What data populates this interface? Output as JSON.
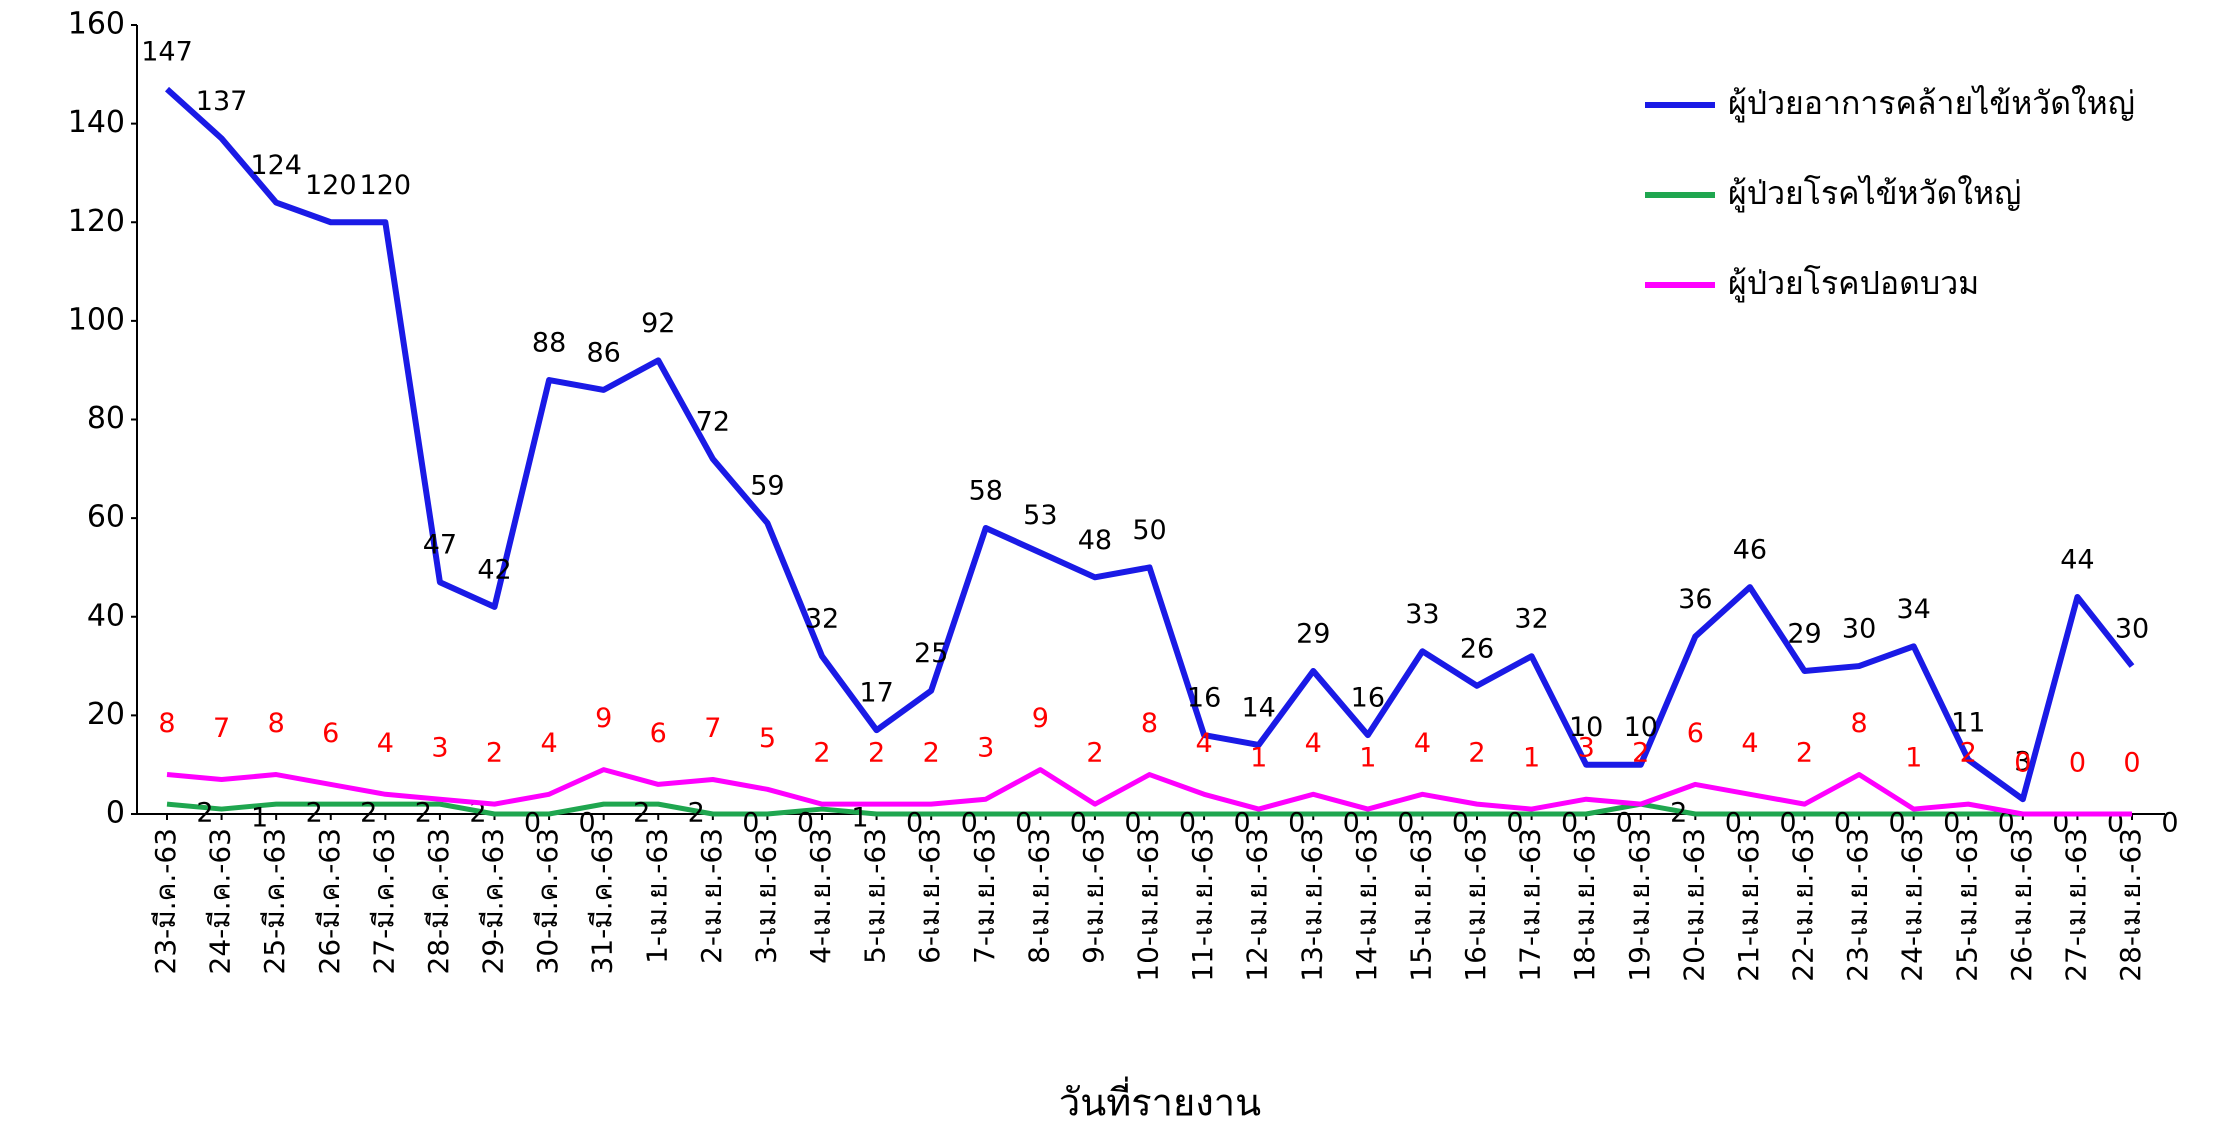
{
  "chart_data": {
    "type": "line",
    "xlabel": "วันที่รายงาน",
    "categories": [
      "23-มี.ค.-63",
      "24-มี.ค.-63",
      "25-มี.ค.-63",
      "26-มี.ค.-63",
      "27-มี.ค.-63",
      "28-มี.ค.-63",
      "29-มี.ค.-63",
      "30-มี.ค.-63",
      "31-มี.ค.-63",
      "1-เม.ย.-63",
      "2-เม.ย.-63",
      "3-เม.ย.-63",
      "4-เม.ย.-63",
      "5-เม.ย.-63",
      "6-เม.ย.-63",
      "7-เม.ย.-63",
      "8-เม.ย.-63",
      "9-เม.ย.-63",
      "10-เม.ย.-63",
      "11-เม.ย.-63",
      "12-เม.ย.-63",
      "13-เม.ย.-63",
      "14-เม.ย.-63",
      "15-เม.ย.-63",
      "16-เม.ย.-63",
      "17-เม.ย.-63",
      "18-เม.ย.-63",
      "19-เม.ย.-63",
      "20-เม.ย.-63",
      "21-เม.ย.-63",
      "22-เม.ย.-63",
      "23-เม.ย.-63",
      "24-เม.ย.-63",
      "25-เม.ย.-63",
      "26-เม.ย.-63",
      "27-เม.ย.-63",
      "28-เม.ย.-63"
    ],
    "series": [
      {
        "name": "ผู้ป่วยอาการคล้ายไข้หวัดใหญ่",
        "color": "#1a1ae6",
        "label_color": "#000000",
        "values": [
          147,
          137,
          124,
          120,
          120,
          47,
          42,
          88,
          86,
          92,
          72,
          59,
          32,
          17,
          25,
          58,
          53,
          48,
          50,
          16,
          14,
          29,
          16,
          33,
          26,
          32,
          10,
          10,
          36,
          46,
          29,
          30,
          34,
          11,
          3,
          44,
          30
        ]
      },
      {
        "name": "ผู้ป่วยโรคไข้หวัดใหญ่",
        "color": "#1fa64f",
        "label_color": "#000000",
        "values": [
          2,
          1,
          2,
          2,
          2,
          2,
          0,
          0,
          2,
          2,
          0,
          0,
          1,
          0,
          0,
          0,
          0,
          0,
          0,
          0,
          0,
          0,
          0,
          0,
          0,
          0,
          0,
          2,
          0,
          0,
          0,
          0,
          0,
          0,
          0,
          0,
          0
        ]
      },
      {
        "name": "ผู้ป่วยโรคปอดบวม",
        "color": "#ff00ff",
        "label_color": "#ff0000",
        "values": [
          8,
          7,
          8,
          6,
          4,
          3,
          2,
          4,
          9,
          6,
          7,
          5,
          2,
          2,
          2,
          3,
          9,
          2,
          8,
          4,
          1,
          4,
          1,
          4,
          2,
          1,
          3,
          2,
          6,
          4,
          2,
          8,
          1,
          2,
          0,
          0,
          0
        ]
      }
    ],
    "ylim": [
      0,
      160
    ],
    "yticks": [
      0,
      20,
      40,
      60,
      80,
      100,
      120,
      140,
      160
    ],
    "grid": false,
    "legend": "upper right"
  }
}
